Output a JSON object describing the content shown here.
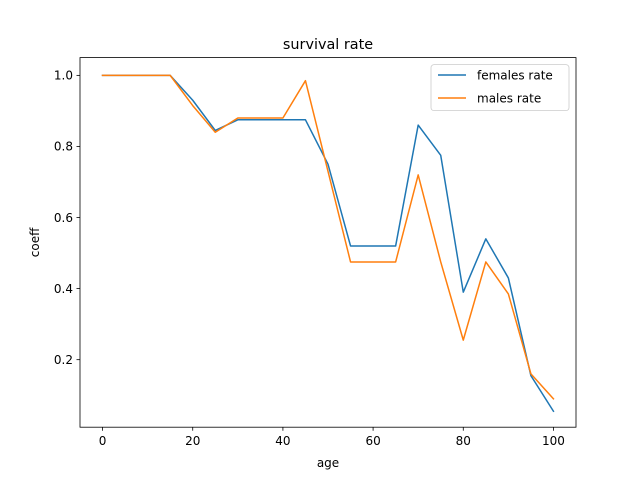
{
  "chart_data": {
    "type": "line",
    "title": "survival rate",
    "xlabel": "age",
    "ylabel": "coeff",
    "xlim": [
      -5,
      105
    ],
    "ylim": [
      0.01,
      1.05
    ],
    "xticks": [
      0,
      20,
      40,
      60,
      80,
      100
    ],
    "yticks": [
      0.2,
      0.4,
      0.6,
      0.8,
      1.0
    ],
    "xtick_labels": [
      "0",
      "20",
      "40",
      "60",
      "80",
      "100"
    ],
    "ytick_labels": [
      "0.2",
      "0.4",
      "0.6",
      "0.8",
      "1.0"
    ],
    "grid": false,
    "legend_position": "top-right",
    "x": [
      0,
      5,
      10,
      15,
      20,
      25,
      30,
      35,
      40,
      45,
      50,
      55,
      60,
      65,
      70,
      75,
      80,
      85,
      90,
      95,
      100
    ],
    "series": [
      {
        "name": "females rate",
        "color": "#1f77b4",
        "values": [
          1.0,
          1.0,
          1.0,
          1.0,
          0.93,
          0.845,
          0.875,
          0.875,
          0.875,
          0.875,
          0.75,
          0.52,
          0.52,
          0.52,
          0.86,
          0.775,
          0.39,
          0.54,
          0.43,
          0.155,
          0.055
        ]
      },
      {
        "name": "males rate",
        "color": "#ff7f0e",
        "values": [
          1.0,
          1.0,
          1.0,
          1.0,
          0.915,
          0.84,
          0.88,
          0.88,
          0.88,
          0.985,
          0.73,
          0.475,
          0.475,
          0.475,
          0.72,
          0.475,
          0.255,
          0.475,
          0.385,
          0.16,
          0.09
        ]
      }
    ]
  }
}
